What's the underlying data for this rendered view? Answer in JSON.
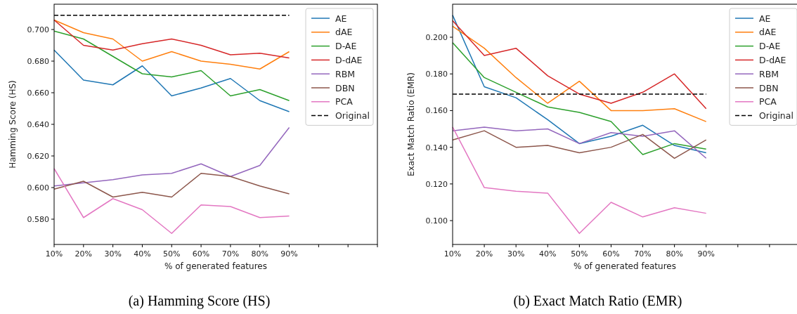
{
  "chart_data": [
    {
      "type": "line",
      "title": "(a) Hamming Score (HS)",
      "xlabel": "% of generated features",
      "ylabel": "Hamming Score (HS)",
      "xlim": [
        10,
        120
      ],
      "ylim": [
        0.564,
        0.716
      ],
      "xticks": [
        {
          "value": 10,
          "label": "10%"
        },
        {
          "value": 20,
          "label": "20%"
        },
        {
          "value": 30,
          "label": "30%"
        },
        {
          "value": 40,
          "label": "40%"
        },
        {
          "value": 50,
          "label": "50%"
        },
        {
          "value": 60,
          "label": "60%"
        },
        {
          "value": 70,
          "label": "70%"
        },
        {
          "value": 80,
          "label": "80%"
        },
        {
          "value": 90,
          "label": "90%"
        },
        {
          "value": 100,
          "label": null
        },
        {
          "value": 110,
          "label": null
        },
        {
          "value": 120,
          "label": null
        }
      ],
      "yticks": [
        {
          "value": 0.58,
          "label": "0.580"
        },
        {
          "value": 0.6,
          "label": "0.600"
        },
        {
          "value": 0.62,
          "label": "0.620"
        },
        {
          "value": 0.64,
          "label": "0.640"
        },
        {
          "value": 0.66,
          "label": "0.660"
        },
        {
          "value": 0.68,
          "label": "0.680"
        },
        {
          "value": 0.7,
          "label": "0.700"
        }
      ],
      "x": [
        10,
        20,
        30,
        40,
        50,
        60,
        70,
        80,
        90
      ],
      "legend": "top right",
      "grid": false,
      "marker": "none",
      "line_style": "solid",
      "series": [
        {
          "name": "AE",
          "color": "#1f77b4",
          "values": [
            0.687,
            0.668,
            0.665,
            0.677,
            0.658,
            0.663,
            0.669,
            0.655,
            0.648
          ]
        },
        {
          "name": "dAE",
          "color": "#ff7f0e",
          "values": [
            0.706,
            0.698,
            0.694,
            0.68,
            0.686,
            0.68,
            0.678,
            0.675,
            0.686
          ]
        },
        {
          "name": "D-AE",
          "color": "#2ca02c",
          "values": [
            0.699,
            0.694,
            0.683,
            0.672,
            0.67,
            0.674,
            0.658,
            0.662,
            0.655
          ]
        },
        {
          "name": "D-dAE",
          "color": "#d62728",
          "values": [
            0.706,
            0.69,
            0.687,
            0.691,
            0.694,
            0.69,
            0.684,
            0.685,
            0.682
          ]
        },
        {
          "name": "RBM",
          "color": "#9467bd",
          "values": [
            0.601,
            0.603,
            0.605,
            0.608,
            0.609,
            0.615,
            0.607,
            0.614,
            0.638
          ]
        },
        {
          "name": "DBN",
          "color": "#8c564b",
          "values": [
            0.599,
            0.604,
            0.594,
            0.597,
            0.594,
            0.609,
            0.607,
            0.601,
            0.596
          ]
        },
        {
          "name": "PCA",
          "color": "#e377c2",
          "values": [
            0.612,
            0.581,
            0.593,
            0.586,
            0.571,
            0.589,
            0.588,
            0.581,
            0.582
          ]
        },
        {
          "name": "Original",
          "color": "#000000",
          "line_style": "dashed",
          "values": [
            0.709,
            0.709,
            0.709,
            0.709,
            0.709,
            0.709,
            0.709,
            0.709,
            0.709
          ]
        }
      ]
    },
    {
      "type": "line",
      "title": "(b) Exact Match Ratio (EMR)",
      "xlabel": "% of generated features",
      "ylabel": "Exact Match Ratio (EMR)",
      "xlim": [
        10,
        120
      ],
      "ylim": [
        0.087,
        0.218
      ],
      "xticks": [
        {
          "value": 10,
          "label": "10%"
        },
        {
          "value": 20,
          "label": "20%"
        },
        {
          "value": 30,
          "label": "30%"
        },
        {
          "value": 40,
          "label": "40%"
        },
        {
          "value": 50,
          "label": "50%"
        },
        {
          "value": 60,
          "label": "60%"
        },
        {
          "value": 70,
          "label": "70%"
        },
        {
          "value": 80,
          "label": "80%"
        },
        {
          "value": 90,
          "label": "90%"
        },
        {
          "value": 100,
          "label": null
        },
        {
          "value": 110,
          "label": null
        },
        {
          "value": 120,
          "label": null
        }
      ],
      "yticks": [
        {
          "value": 0.1,
          "label": "0.100"
        },
        {
          "value": 0.12,
          "label": "0.120"
        },
        {
          "value": 0.14,
          "label": "0.140"
        },
        {
          "value": 0.16,
          "label": "0.160"
        },
        {
          "value": 0.18,
          "label": "0.180"
        },
        {
          "value": 0.2,
          "label": "0.200"
        }
      ],
      "x": [
        10,
        20,
        30,
        40,
        50,
        60,
        70,
        80,
        90
      ],
      "legend": "top right",
      "grid": false,
      "marker": "none",
      "line_style": "solid",
      "series": [
        {
          "name": "AE",
          "color": "#1f77b4",
          "values": [
            0.212,
            0.173,
            0.167,
            0.155,
            0.142,
            0.146,
            0.152,
            0.141,
            0.137
          ]
        },
        {
          "name": "dAE",
          "color": "#ff7f0e",
          "values": [
            0.206,
            0.194,
            0.178,
            0.164,
            0.176,
            0.16,
            0.16,
            0.161,
            0.154
          ]
        },
        {
          "name": "D-AE",
          "color": "#2ca02c",
          "values": [
            0.197,
            0.178,
            0.17,
            0.162,
            0.159,
            0.154,
            0.136,
            0.142,
            0.139
          ]
        },
        {
          "name": "D-dAE",
          "color": "#d62728",
          "values": [
            0.209,
            0.19,
            0.194,
            0.179,
            0.169,
            0.164,
            0.17,
            0.18,
            0.161
          ]
        },
        {
          "name": "RBM",
          "color": "#9467bd",
          "values": [
            0.149,
            0.151,
            0.149,
            0.15,
            0.142,
            0.148,
            0.146,
            0.149,
            0.134
          ]
        },
        {
          "name": "DBN",
          "color": "#8c564b",
          "values": [
            0.144,
            0.149,
            0.14,
            0.141,
            0.137,
            0.14,
            0.147,
            0.134,
            0.144
          ]
        },
        {
          "name": "PCA",
          "color": "#e377c2",
          "values": [
            0.151,
            0.118,
            0.116,
            0.115,
            0.093,
            0.11,
            0.102,
            0.107,
            0.104
          ]
        },
        {
          "name": "Original",
          "color": "#000000",
          "line_style": "dashed",
          "values": [
            0.169,
            0.169,
            0.169,
            0.169,
            0.169,
            0.169,
            0.169,
            0.169,
            0.169
          ]
        }
      ]
    }
  ]
}
